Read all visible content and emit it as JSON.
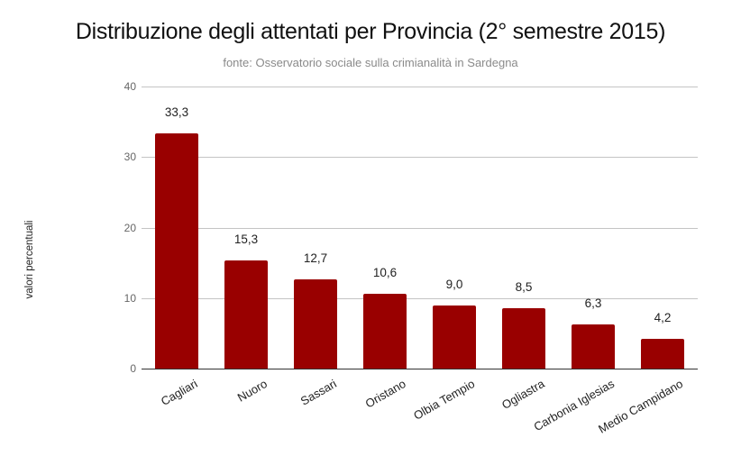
{
  "chart_data": {
    "type": "bar",
    "title": "Distribuzione degli attentati per Provincia (2° semestre 2015)",
    "subtitle": "fonte: Osservatorio sociale sulla crimianalità in Sardegna",
    "xlabel": "",
    "ylabel": "valori percentuali",
    "ylim": [
      0,
      40
    ],
    "yticks": [
      0,
      10,
      20,
      30,
      40
    ],
    "grid": true,
    "legend": "none",
    "bar_color": "#990000",
    "categories": [
      "Cagliari",
      "Nuoro",
      "Sassari",
      "Oristano",
      "Olbia Tempio",
      "Ogliastra",
      "Carbonia Iglesias",
      "Medio Campidano"
    ],
    "values": [
      33.3,
      15.3,
      12.7,
      10.6,
      9.0,
      8.5,
      6.3,
      4.2
    ],
    "data_labels": [
      "33,3",
      "15,3",
      "12,7",
      "10,6",
      "9,0",
      "8,5",
      "6,3",
      "4,2"
    ]
  }
}
